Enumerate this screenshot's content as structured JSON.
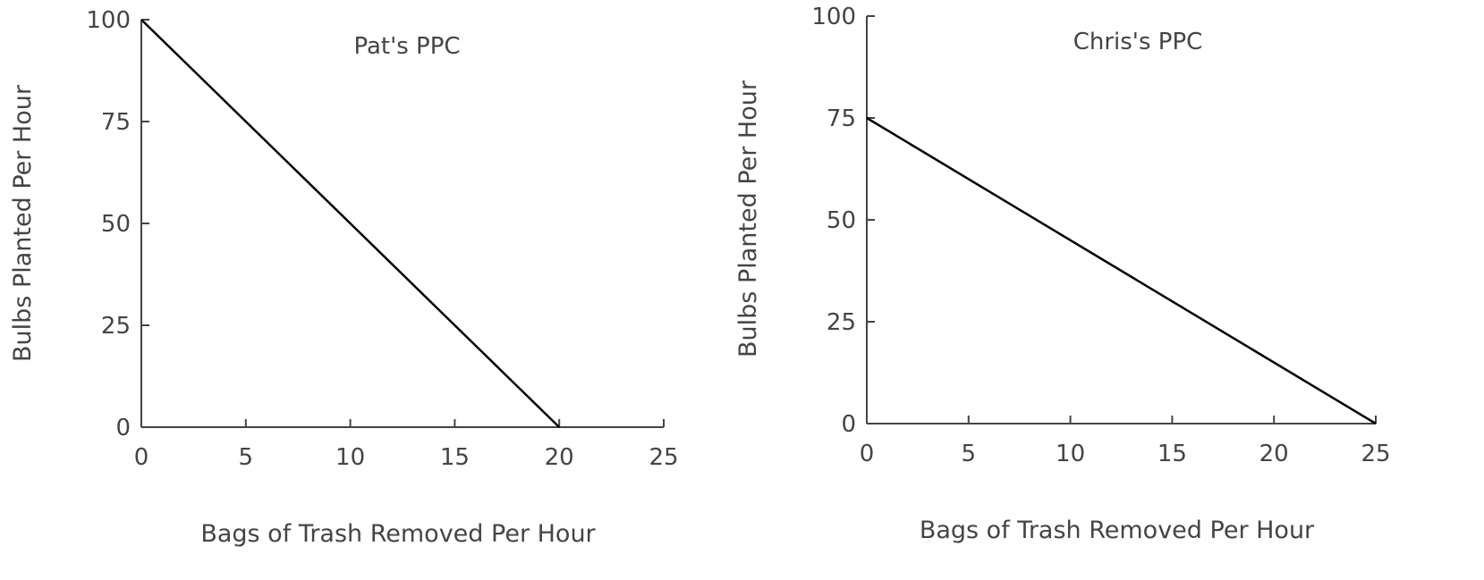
{
  "chart_data": [
    {
      "type": "line",
      "title": "Pat's PPC",
      "xlabel": "Bags of Trash Removed Per Hour",
      "ylabel": "Bulbs Planted Per Hour",
      "xlim": [
        0,
        25
      ],
      "ylim": [
        0,
        100
      ],
      "x_ticks": [
        "0",
        "5",
        "10",
        "15",
        "20",
        "25"
      ],
      "y_ticks": [
        "0",
        "25",
        "50",
        "75",
        "100"
      ],
      "series": [
        {
          "x": [
            0,
            20
          ],
          "y": [
            100,
            0
          ]
        }
      ],
      "grid": false,
      "line_color": "#000000"
    },
    {
      "type": "line",
      "title": "Chris's PPC",
      "xlabel": "Bags of Trash Removed Per Hour",
      "ylabel": "Bulbs Planted Per Hour",
      "xlim": [
        0,
        25
      ],
      "ylim": [
        0,
        100
      ],
      "x_ticks": [
        "0",
        "5",
        "10",
        "15",
        "20",
        "25"
      ],
      "y_ticks": [
        "0",
        "25",
        "50",
        "75",
        "100"
      ],
      "series": [
        {
          "x": [
            0,
            25
          ],
          "y": [
            75,
            0
          ]
        }
      ],
      "grid": false,
      "line_color": "#000000"
    }
  ]
}
